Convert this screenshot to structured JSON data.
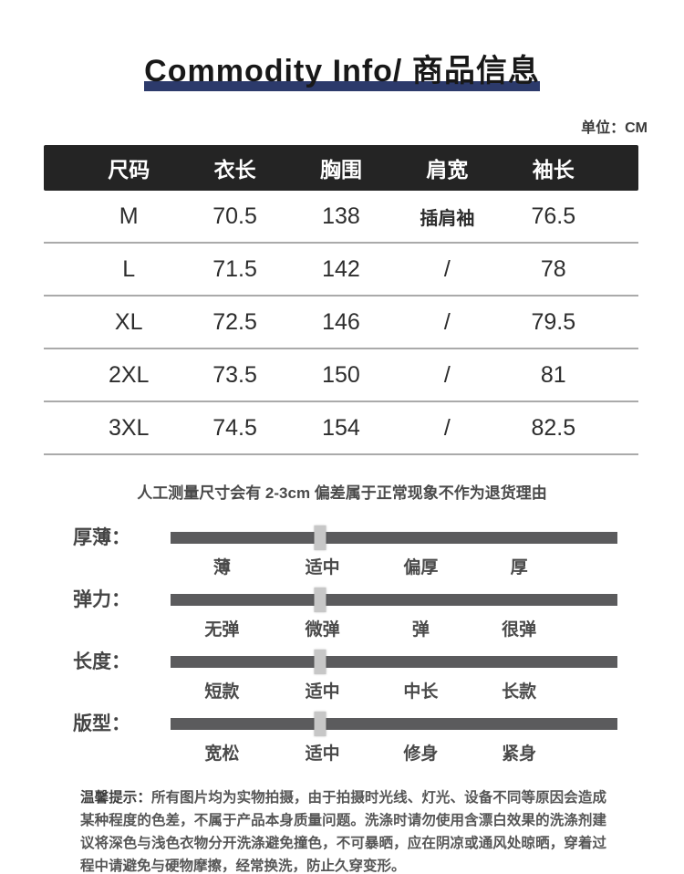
{
  "header": {
    "title": "Commodity Info/ 商品信息",
    "unit_label": "单位：CM"
  },
  "size_table": {
    "headers": [
      "尺码",
      "衣长",
      "胸围",
      "肩宽",
      "袖长"
    ],
    "rows": [
      [
        "M",
        "70.5",
        "138",
        "插肩袖",
        "76.5"
      ],
      [
        "L",
        "71.5",
        "142",
        "/",
        "78"
      ],
      [
        "XL",
        "72.5",
        "146",
        "/",
        "79.5"
      ],
      [
        "2XL",
        "73.5",
        "150",
        "/",
        "81"
      ],
      [
        "3XL",
        "74.5",
        "154",
        "/",
        "82.5"
      ]
    ]
  },
  "note": "人工测量尺寸会有 2-3cm 偏差属于正常现象不作为退货理由",
  "sliders": [
    {
      "label": "厚薄：",
      "options": [
        "薄",
        "适中",
        "偏厚",
        "厚"
      ],
      "handle_position_pct": 33.5
    },
    {
      "label": "弹力：",
      "options": [
        "无弹",
        "微弹",
        "弹",
        "很弹"
      ],
      "handle_position_pct": 33.5
    },
    {
      "label": "长度：",
      "options": [
        "短款",
        "适中",
        "中长",
        "长款"
      ],
      "handle_position_pct": 33.5
    },
    {
      "label": "版型：",
      "options": [
        "宽松",
        "适中",
        "修身",
        "紧身"
      ],
      "handle_position_pct": 33.5
    }
  ],
  "warning": {
    "prefix": "温馨提示：",
    "text": "所有图片均为实物拍摄，由于拍摄时光线、灯光、设备不同等原因会造成某种程度的色差，不属于产品本身质量问题。洗涤时请勿使用含漂白效果的洗涤剂建议将深色与浅色衣物分开洗涤避免撞色，不可暴晒，应在阴凉或通风处晾晒，穿着过程中请避免与硬物摩擦，经常换洗，防止久穿变形。"
  },
  "colors": {
    "accent_bar": "#2c3a6b",
    "table_header_bg": "#242424",
    "slider_bar": "#5b5b5d",
    "slider_handle": "#c7c7c7"
  }
}
